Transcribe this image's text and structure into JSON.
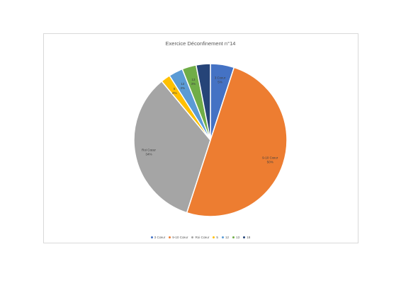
{
  "chart_data": {
    "type": "pie",
    "title": "Exercice Déconfinement n°14",
    "slices": [
      {
        "name": "3 Cœur",
        "pct_label": "5%",
        "value": 5,
        "color": "#4472c4",
        "label_side": "inside"
      },
      {
        "name": "9-10 Cœur",
        "pct_label": "50%",
        "value": 50,
        "color": "#ed7d31",
        "label_side": "inside"
      },
      {
        "name": "Roi Cœur",
        "pct_label": "34%",
        "value": 34,
        "color": "#a5a5a5",
        "label_side": "inside"
      },
      {
        "name": "5",
        "pct_label": "2%",
        "value": 2,
        "color": "#ffc000",
        "label_side": "inside"
      },
      {
        "name": "12",
        "pct_label": "3%",
        "value": 3,
        "color": "#5b9bd5",
        "label_side": "inside"
      },
      {
        "name": "13",
        "pct_label": "3%",
        "value": 3,
        "color": "#70ad47",
        "label_side": "inside"
      },
      {
        "name": "18",
        "pct_label": "",
        "value": 3,
        "color": "#264478",
        "label_side": "none"
      }
    ],
    "legend_position": "bottom"
  }
}
